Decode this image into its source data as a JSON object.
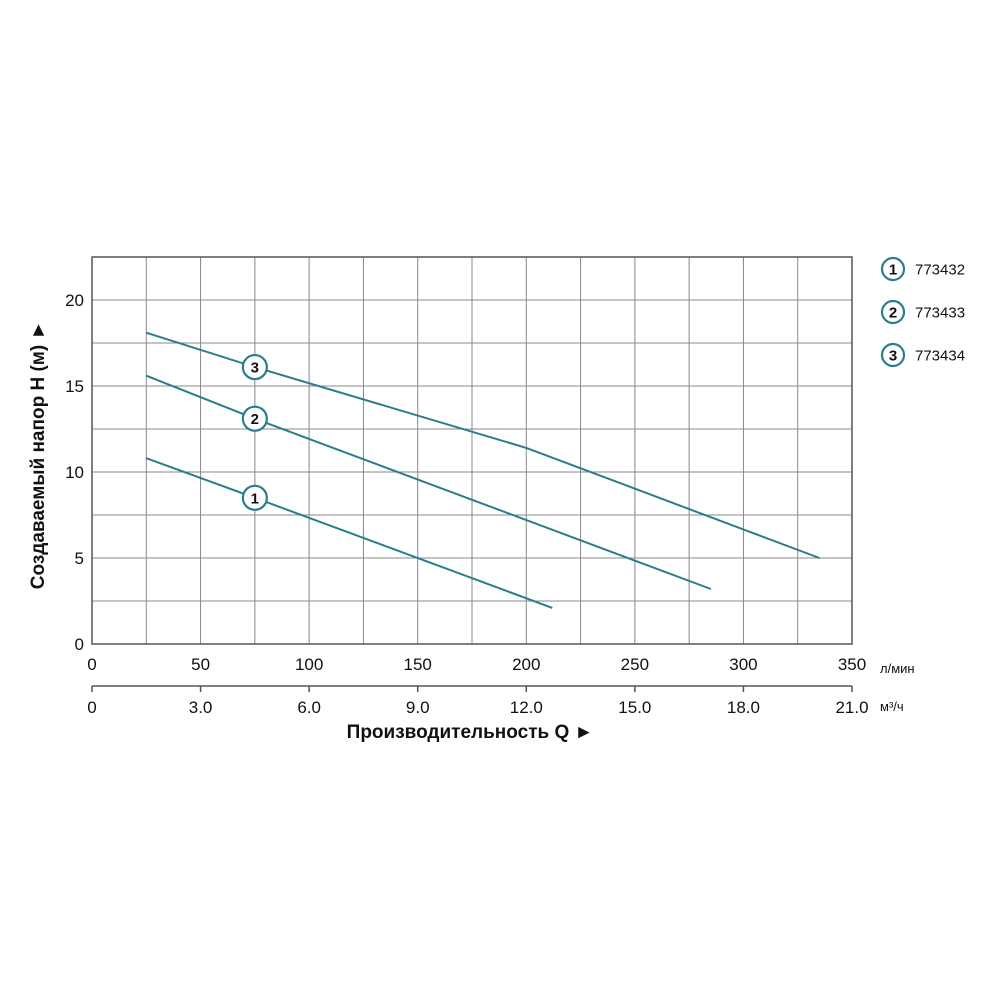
{
  "chart_data": {
    "type": "line",
    "title": "",
    "xlabel": "Производительность Q ►",
    "ylabel": "Создаваемый напор H (м) ►",
    "x_unit": "л/мин",
    "x2_unit": "м³/ч",
    "xlim": [
      0,
      350
    ],
    "ylim": [
      0,
      20
    ],
    "x_ticks": [
      "0",
      "50",
      "100",
      "150",
      "200",
      "250",
      "300",
      "350"
    ],
    "x2_ticks": [
      "0",
      "3.0",
      "6.0",
      "9.0",
      "12.0",
      "15.0",
      "18.0",
      "21.0"
    ],
    "y_ticks": [
      "0",
      "5",
      "10",
      "15",
      "20"
    ],
    "grid": true,
    "legend_position": "right",
    "line_color": "#2a7d8c",
    "series": [
      {
        "name": "773432",
        "marker": "1",
        "x": [
          25,
          75,
          212
        ],
        "y": [
          10.8,
          8.5,
          2.1
        ]
      },
      {
        "name": "773433",
        "marker": "2",
        "x": [
          25,
          75,
          285
        ],
        "y": [
          15.6,
          13.1,
          3.2
        ]
      },
      {
        "name": "773434",
        "marker": "3",
        "x": [
          25,
          75,
          200,
          335
        ],
        "y": [
          18.1,
          16.1,
          11.4,
          5.0
        ]
      }
    ]
  }
}
